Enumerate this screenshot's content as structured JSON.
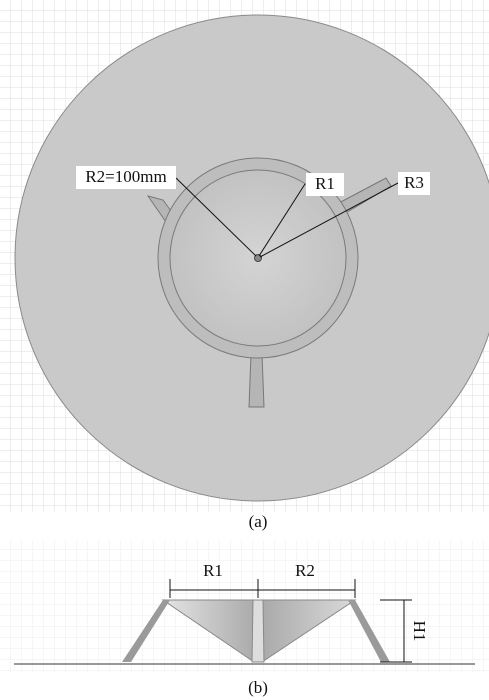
{
  "figure_a": {
    "labels": {
      "r2": "R2=100mm",
      "r1": "R1",
      "r3": "R3"
    },
    "caption": "(a)"
  },
  "figure_b": {
    "labels": {
      "r1": "R1",
      "r2": "R2",
      "h1": "H1"
    },
    "caption": "(b)"
  }
}
